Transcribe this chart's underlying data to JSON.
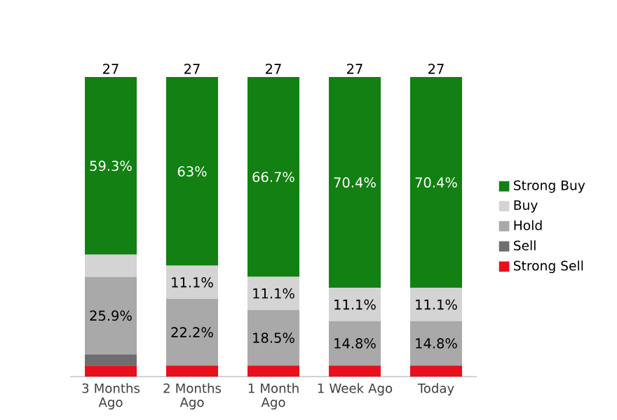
{
  "chart_data": {
    "type": "bar",
    "stacked": true,
    "legend": "right",
    "tick_labels": "x",
    "ylim": [
      0,
      100
    ],
    "categories": [
      "3 Months Ago",
      "2 Months Ago",
      "1 Month Ago",
      "1 Week Ago",
      "Today"
    ],
    "series": [
      {
        "name": "Strong Sell",
        "color": "#e8101c",
        "values": [
          3.7,
          3.7,
          3.7,
          3.7,
          3.7
        ],
        "value_labels": [
          null,
          null,
          null,
          null,
          null
        ]
      },
      {
        "name": "Sell",
        "color": "#6e6e6e",
        "values": [
          3.7,
          0,
          0,
          0,
          0
        ],
        "value_labels": [
          null,
          null,
          null,
          null,
          null
        ]
      },
      {
        "name": "Hold",
        "color": "#a9a9a9",
        "values": [
          25.9,
          22.2,
          18.5,
          14.8,
          14.8
        ],
        "value_labels": [
          "25.9%",
          "22.2%",
          "18.5%",
          "14.8%",
          "14.8%"
        ]
      },
      {
        "name": "Buy",
        "color": "#d4d4d4",
        "values": [
          7.4,
          11.1,
          11.1,
          11.1,
          11.1
        ],
        "value_labels": [
          null,
          "11.1%",
          "11.1%",
          "11.1%",
          "11.1%"
        ]
      },
      {
        "name": "Strong Buy",
        "color": "#128012",
        "values": [
          59.3,
          63,
          66.7,
          70.4,
          70.4
        ],
        "value_labels": [
          "59.3%",
          "63%",
          "66.7%",
          "70.4%",
          "70.4%"
        ]
      }
    ],
    "annotations": [
      {
        "text": "27",
        "x": "3 Months Ago",
        "y": 100
      },
      {
        "text": "27",
        "x": "2 Months Ago",
        "y": 100
      },
      {
        "text": "27",
        "x": "1 Month Ago",
        "y": 100
      },
      {
        "text": "27",
        "x": "1 Week Ago",
        "y": 100
      },
      {
        "text": "27",
        "x": "Today",
        "y": 100
      }
    ]
  }
}
